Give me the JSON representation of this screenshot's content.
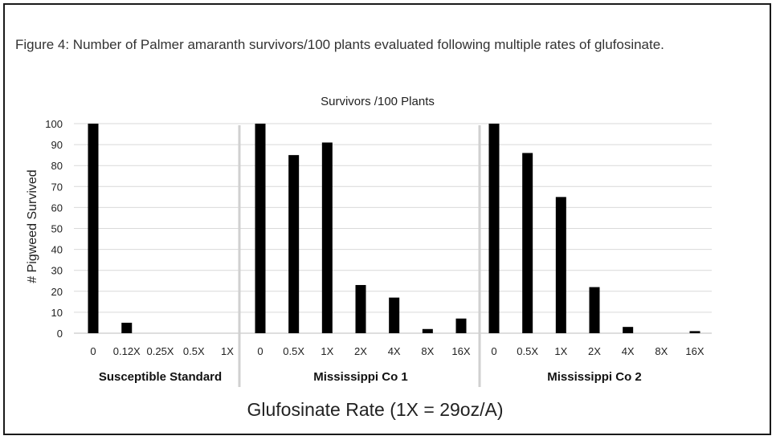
{
  "figure_caption": "Figure 4:  Number of Palmer amaranth survivors/100 plants evaluated following multiple rates of glufosinate.",
  "chart_data": {
    "type": "bar",
    "title": "Survivors /100 Plants",
    "ylabel": "# Pigweed Survived",
    "xlabel": "Glufosinate Rate (1X = 29oz/A)",
    "ylim": [
      0,
      100
    ],
    "yticks": [
      0,
      10,
      20,
      30,
      40,
      50,
      60,
      70,
      80,
      90,
      100
    ],
    "grid": true,
    "bar_color": "#000000",
    "groups": [
      {
        "name": "Susceptible Standard",
        "categories": [
          "0",
          "0.12X",
          "0.25X",
          "0.5X",
          "1X"
        ],
        "values": [
          100,
          5,
          0,
          0,
          0
        ]
      },
      {
        "name": "Mississippi Co 1",
        "categories": [
          "0",
          "0.5X",
          "1X",
          "2X",
          "4X",
          "8X",
          "16X"
        ],
        "values": [
          100,
          85,
          91,
          23,
          17,
          2,
          7
        ]
      },
      {
        "name": "Mississippi Co 2",
        "categories": [
          "0",
          "0.5X",
          "1X",
          "2X",
          "4X",
          "8X",
          "16X"
        ],
        "values": [
          100,
          86,
          65,
          22,
          3,
          0,
          1
        ]
      }
    ]
  }
}
